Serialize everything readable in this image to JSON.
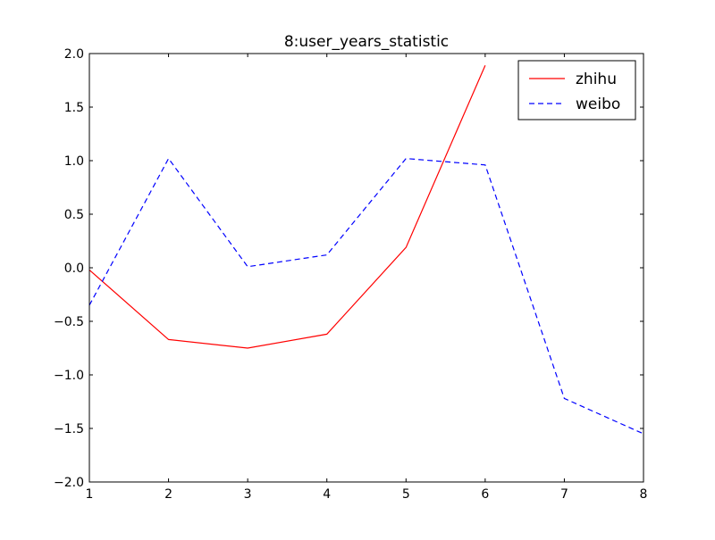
{
  "chart_data": {
    "type": "line",
    "title": "8:user_years_statistic",
    "xlabel": "",
    "ylabel": "",
    "xlim": [
      1,
      8
    ],
    "ylim": [
      -2.0,
      2.0
    ],
    "x_ticks": [
      1,
      2,
      3,
      4,
      5,
      6,
      7,
      8
    ],
    "x_tick_labels": [
      "1",
      "2",
      "3",
      "4",
      "5",
      "6",
      "7",
      "8"
    ],
    "y_ticks": [
      -2.0,
      -1.5,
      -1.0,
      -0.5,
      0.0,
      0.5,
      1.0,
      1.5,
      2.0
    ],
    "y_tick_labels": [
      "−2.0",
      "−1.5",
      "−1.0",
      "−0.5",
      "0.0",
      "0.5",
      "1.0",
      "1.5",
      "2.0"
    ],
    "grid": false,
    "legend_position": "top-right",
    "series": [
      {
        "name": "zhihu",
        "color": "#ff0000",
        "line_style": "solid",
        "x": [
          1,
          2,
          3,
          4,
          5,
          6
        ],
        "values": [
          -0.02,
          -0.67,
          -0.75,
          -0.62,
          0.19,
          1.89
        ]
      },
      {
        "name": "weibo",
        "color": "#0000ff",
        "line_style": "dashed",
        "x": [
          1,
          2,
          3,
          4,
          5,
          6,
          7,
          8
        ],
        "values": [
          -0.35,
          1.02,
          0.01,
          0.12,
          1.02,
          0.96,
          -1.22,
          -1.55
        ]
      }
    ]
  }
}
